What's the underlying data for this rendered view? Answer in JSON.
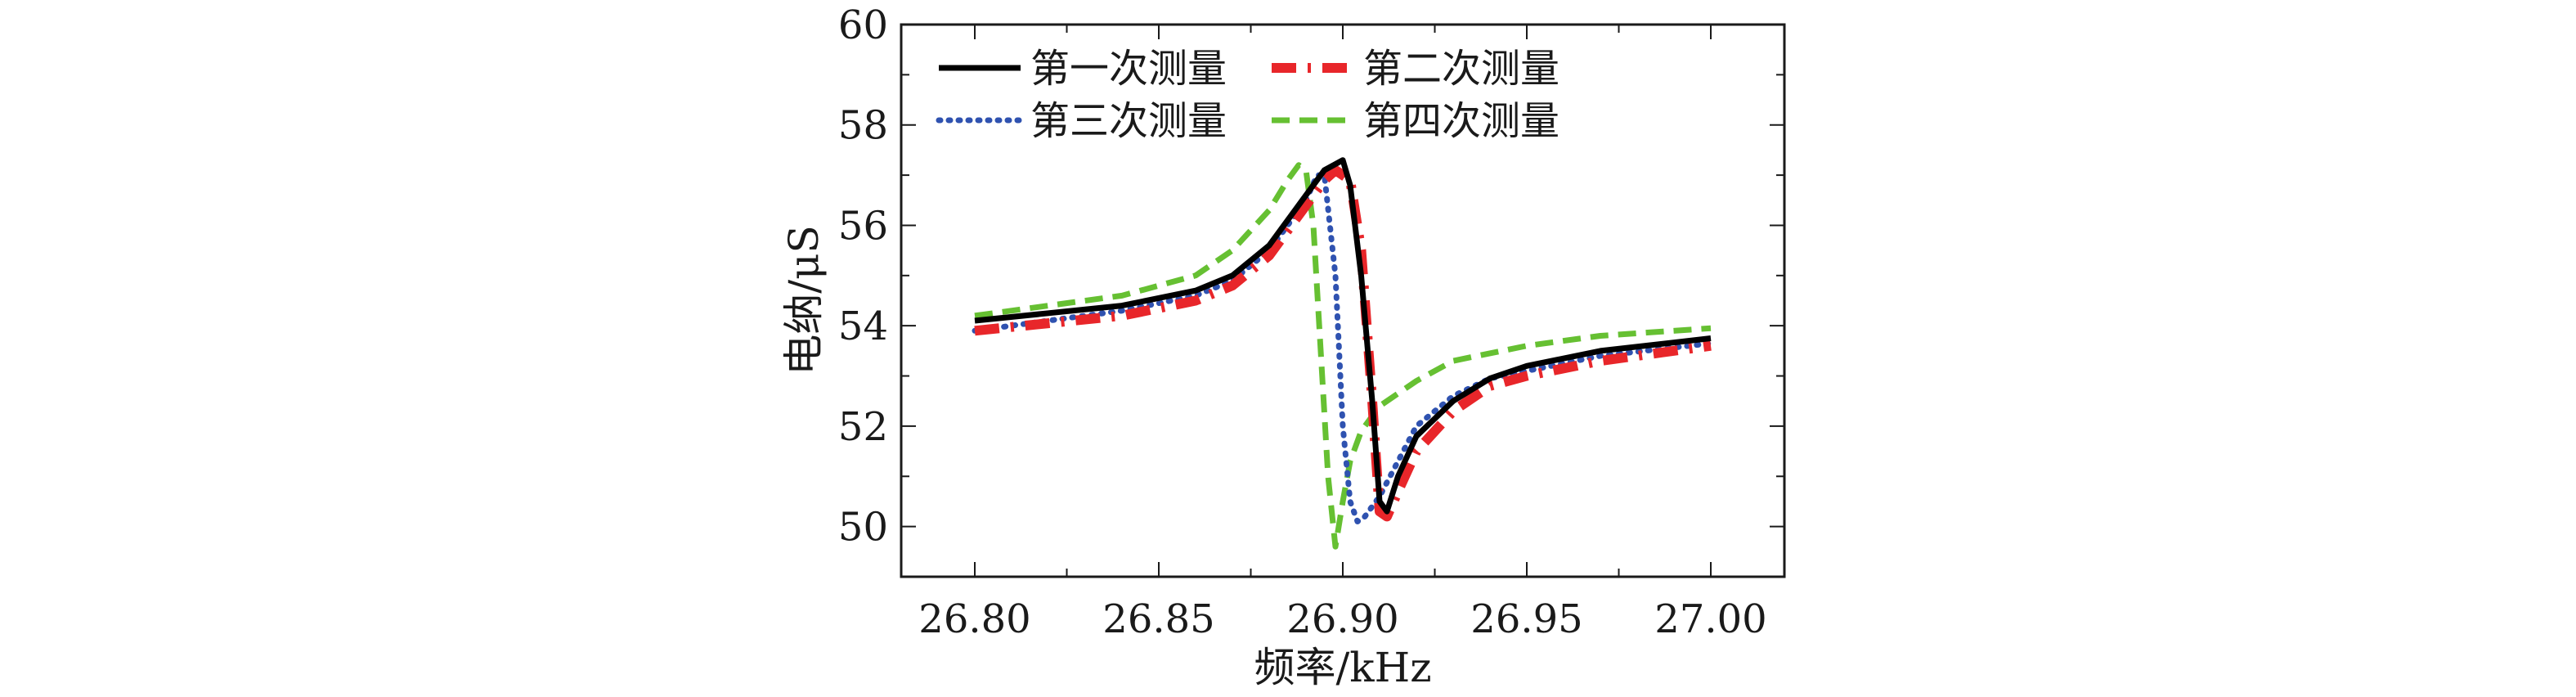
{
  "chart_data": {
    "type": "line",
    "xlabel": "频率/kHz",
    "ylabel": "电纳/μS",
    "xlim": [
      26.78,
      27.02
    ],
    "ylim": [
      49,
      60
    ],
    "xticks": [
      26.8,
      26.85,
      26.9,
      26.95,
      27.0
    ],
    "xtick_labels": [
      "26.80",
      "26.85",
      "26.90",
      "26.95",
      "27.00"
    ],
    "yticks": [
      50,
      52,
      54,
      56,
      58,
      60
    ],
    "ytick_labels": [
      "50",
      "52",
      "54",
      "56",
      "58",
      "60"
    ],
    "grid": false,
    "legend_position": "top-left",
    "series": [
      {
        "name": "第一次测量",
        "color": "#000000",
        "dash": "solid",
        "x": [
          26.8,
          26.82,
          26.84,
          26.86,
          26.87,
          26.88,
          26.89,
          26.895,
          26.9,
          26.902,
          26.905,
          26.908,
          26.91,
          26.912,
          26.915,
          26.92,
          26.93,
          26.94,
          26.95,
          26.97,
          27.0
        ],
        "y": [
          54.1,
          54.25,
          54.4,
          54.7,
          55.0,
          55.6,
          56.6,
          57.1,
          57.3,
          56.8,
          55.0,
          52.5,
          50.5,
          50.3,
          51.0,
          51.8,
          52.5,
          52.95,
          53.2,
          53.5,
          53.75
        ]
      },
      {
        "name": "第二次测量",
        "color": "#e8262a",
        "dash": "dashdot",
        "x": [
          26.8,
          26.82,
          26.84,
          26.86,
          26.87,
          26.88,
          26.89,
          26.895,
          26.898,
          26.902,
          26.905,
          26.908,
          26.91,
          26.912,
          26.915,
          26.92,
          26.93,
          26.94,
          26.95,
          26.97,
          27.0
        ],
        "y": [
          53.9,
          54.05,
          54.2,
          54.5,
          54.8,
          55.4,
          56.4,
          56.9,
          57.1,
          56.9,
          55.5,
          52.5,
          50.3,
          50.2,
          50.7,
          51.5,
          52.3,
          52.8,
          53.0,
          53.3,
          53.6
        ]
      },
      {
        "name": "第三次测量",
        "color": "#2f52b0",
        "dash": "dotted",
        "x": [
          26.8,
          26.82,
          26.84,
          26.86,
          26.87,
          26.88,
          26.89,
          26.893,
          26.895,
          26.898,
          26.9,
          26.902,
          26.904,
          26.906,
          26.91,
          26.915,
          26.92,
          26.93,
          26.94,
          26.95,
          26.97,
          27.0
        ],
        "y": [
          53.9,
          54.1,
          54.3,
          54.6,
          54.9,
          55.5,
          56.5,
          57.0,
          57.0,
          55.0,
          52.0,
          50.5,
          50.1,
          50.2,
          50.6,
          51.3,
          52.0,
          52.6,
          52.95,
          53.1,
          53.4,
          53.65
        ]
      },
      {
        "name": "第四次测量",
        "color": "#66c032",
        "dash": "dashed",
        "x": [
          26.8,
          26.82,
          26.84,
          26.86,
          26.87,
          26.88,
          26.885,
          26.888,
          26.89,
          26.892,
          26.894,
          26.896,
          26.898,
          26.9,
          26.902,
          26.905,
          26.91,
          26.92,
          26.93,
          26.95,
          26.97,
          27.0
        ],
        "y": [
          54.2,
          54.4,
          54.6,
          55.0,
          55.5,
          56.3,
          56.9,
          57.2,
          57.1,
          56.0,
          53.5,
          51.0,
          49.6,
          50.5,
          51.3,
          51.9,
          52.4,
          52.9,
          53.3,
          53.6,
          53.8,
          53.95
        ]
      }
    ]
  }
}
